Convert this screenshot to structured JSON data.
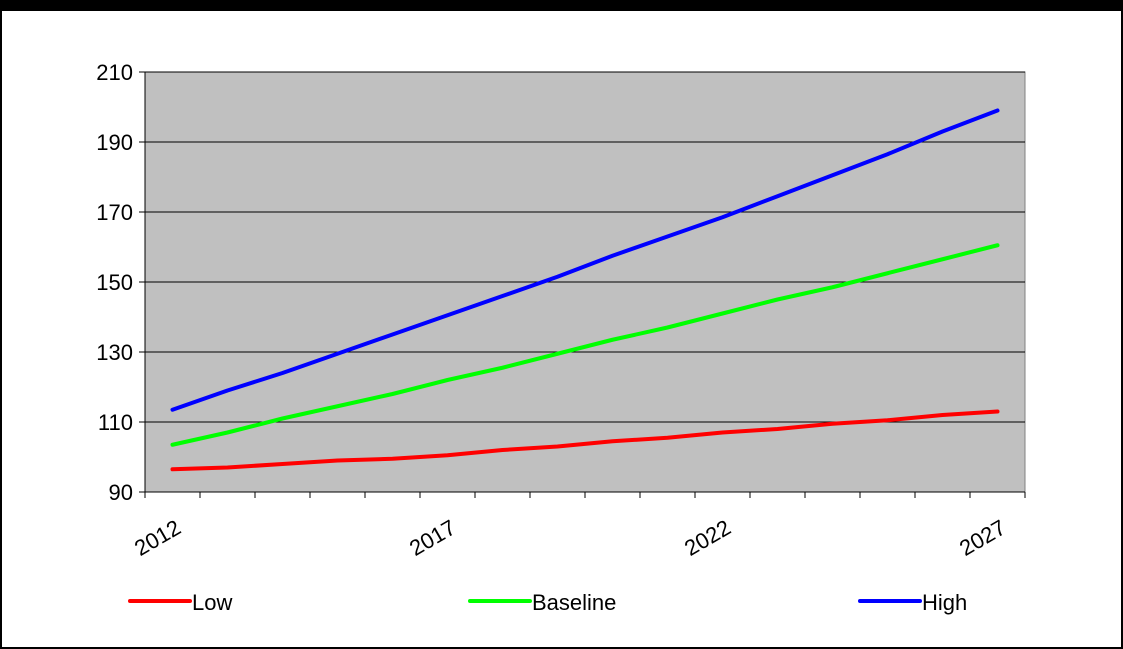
{
  "chart_data": {
    "type": "line",
    "title": "",
    "xlabel": "",
    "ylabel": "",
    "x": [
      2012,
      2013,
      2014,
      2015,
      2016,
      2017,
      2018,
      2019,
      2020,
      2021,
      2022,
      2023,
      2024,
      2025,
      2026,
      2027
    ],
    "x_tick_labels": [
      "2012",
      "2017",
      "2022",
      "2027"
    ],
    "x_tick_values": [
      2012,
      2017,
      2022,
      2027
    ],
    "xlim": [
      2011.5,
      2027.5
    ],
    "ylim": [
      90,
      210
    ],
    "y_tick_labels": [
      "90",
      "110",
      "130",
      "150",
      "170",
      "190",
      "210"
    ],
    "y_tick_values": [
      90,
      110,
      130,
      150,
      170,
      190,
      210
    ],
    "grid": true,
    "plot_background": "#c0c0c0",
    "legend_position": "bottom",
    "series": [
      {
        "name": "Low",
        "color": "#ff0000",
        "values": [
          96.5,
          97,
          98,
          99,
          99.5,
          100.5,
          102,
          103,
          104.5,
          105.5,
          107,
          108,
          109.5,
          110.5,
          112,
          113
        ]
      },
      {
        "name": "Baseline",
        "color": "#00ff00",
        "values": [
          103.5,
          107,
          111,
          114.5,
          118,
          122,
          125.5,
          129.5,
          133.5,
          137,
          141,
          145,
          148.5,
          152.5,
          156.5,
          160.5
        ]
      },
      {
        "name": "High",
        "color": "#0000ff",
        "values": [
          113.5,
          119,
          124,
          129.5,
          135,
          140.5,
          146,
          151.5,
          157.5,
          163,
          168.5,
          174.5,
          180.5,
          186.5,
          193,
          199
        ]
      }
    ]
  }
}
